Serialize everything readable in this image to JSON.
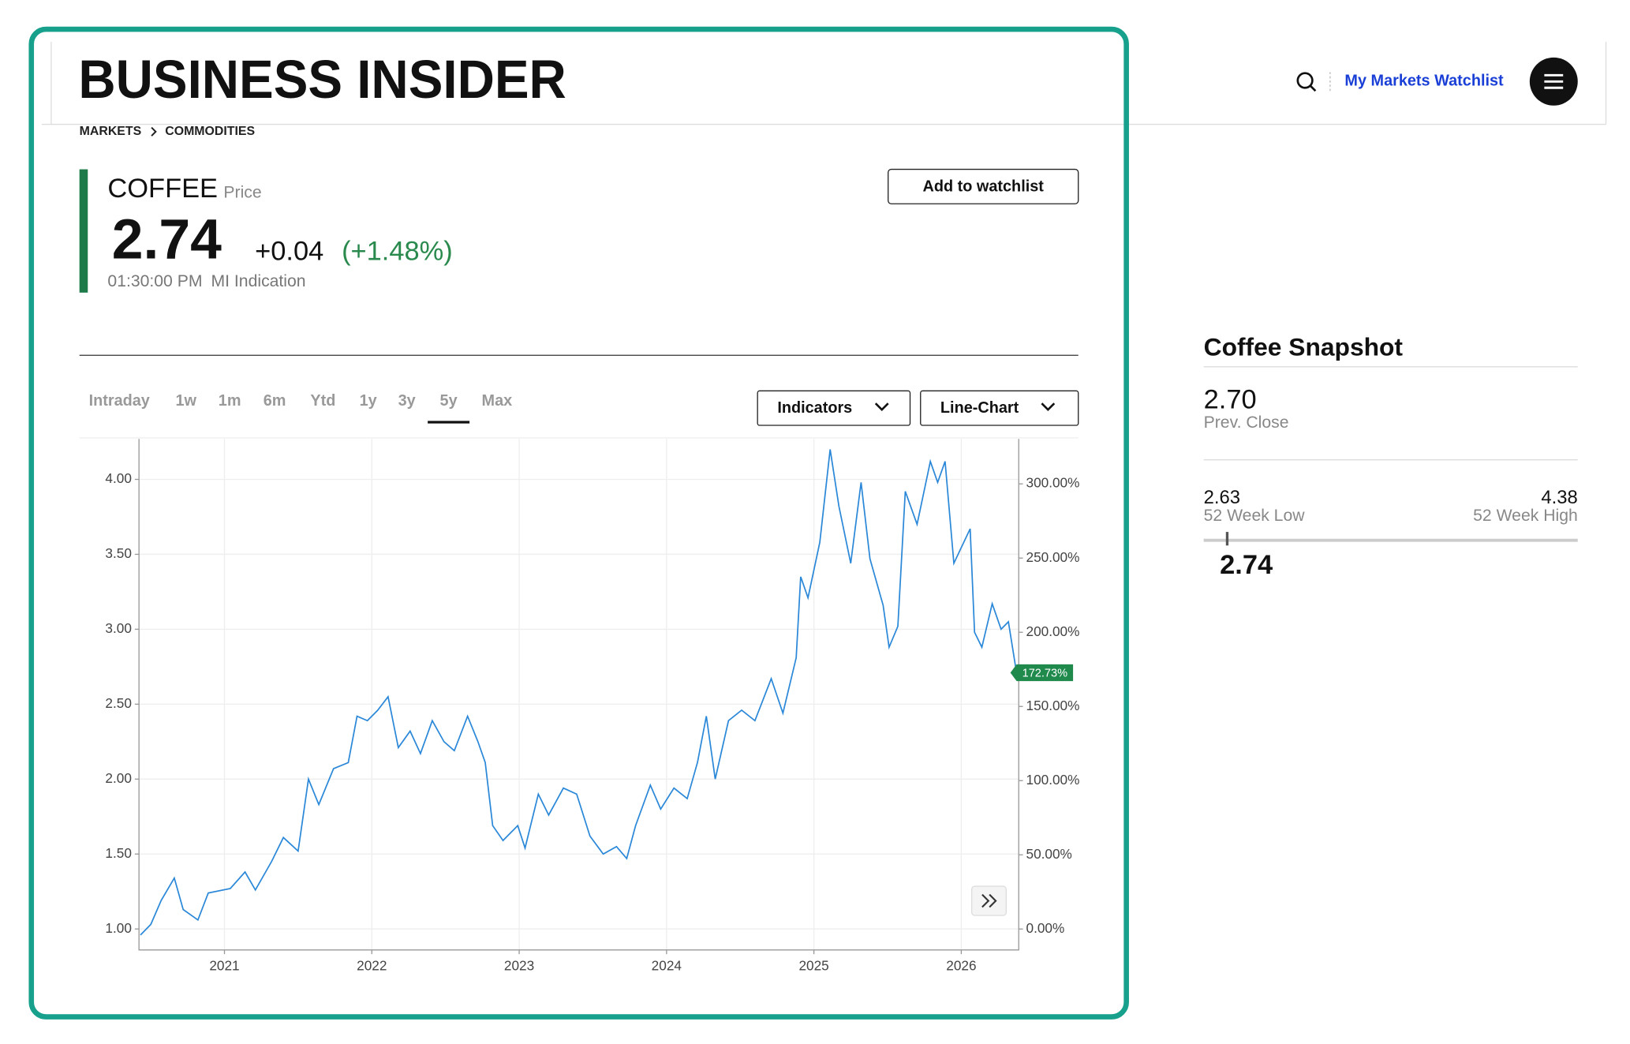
{
  "header": {
    "logo": "BUSINESS INSIDER",
    "watchlist_link": "My Markets Watchlist"
  },
  "breadcrumb": [
    "MARKETS",
    "COMMODITIES"
  ],
  "quote": {
    "name": "COFFEE",
    "name_suffix": "Price",
    "price": "2.74",
    "change": "+0.04",
    "change_percent": "(+1.48%)",
    "time": "01:30:00 PM",
    "source": "MI Indication",
    "watch_button": "Add to watchlist"
  },
  "tabs": [
    {
      "label": "Intraday"
    },
    {
      "label": "1w"
    },
    {
      "label": "1m"
    },
    {
      "label": "6m"
    },
    {
      "label": "Ytd"
    },
    {
      "label": "1y"
    },
    {
      "label": "3y"
    },
    {
      "label": "5y",
      "active": true
    },
    {
      "label": "Max"
    }
  ],
  "controls": {
    "indicators": "Indicators",
    "chart_type": "Line-Chart"
  },
  "snapshot": {
    "title": "Coffee Snapshot",
    "prev_close": "2.70",
    "prev_close_label": "Prev. Close",
    "low": "2.63",
    "low_label": "52 Week Low",
    "high": "4.38",
    "high_label": "52 Week High",
    "current": "2.74"
  },
  "chart_data": {
    "type": "line",
    "x": [
      2020.43,
      2020.5,
      2020.57,
      2020.66,
      2020.72,
      2020.82,
      2020.89,
      2021.04,
      2021.14,
      2021.21,
      2021.32,
      2021.4,
      2021.5,
      2021.57,
      2021.64,
      2021.74,
      2021.84,
      2021.9,
      2021.97,
      2022.04,
      2022.11,
      2022.18,
      2022.26,
      2022.33,
      2022.41,
      2022.49,
      2022.56,
      2022.65,
      2022.72,
      2022.77,
      2022.82,
      2022.89,
      2022.99,
      2023.04,
      2023.13,
      2023.2,
      2023.3,
      2023.39,
      2023.48,
      2023.57,
      2023.66,
      2023.73,
      2023.79,
      2023.89,
      2023.96,
      2024.05,
      2024.14,
      2024.21,
      2024.27,
      2024.33,
      2024.42,
      2024.51,
      2024.6,
      2024.71,
      2024.79,
      2024.88,
      2024.91,
      2024.96,
      2025.04,
      2025.11,
      2025.17,
      2025.25,
      2025.32,
      2025.38,
      2025.47,
      2025.51,
      2025.57,
      2025.62,
      2025.7,
      2025.79,
      2025.84,
      2025.89,
      2025.95,
      2026.06,
      2026.09,
      2026.14,
      2026.21,
      2026.27,
      2026.32,
      2026.37
    ],
    "series": [
      {
        "color": "#2b88d8",
        "values": [
          0.96,
          1.03,
          1.19,
          1.34,
          1.13,
          1.06,
          1.24,
          1.27,
          1.38,
          1.26,
          1.45,
          1.61,
          1.52,
          2.0,
          1.83,
          2.07,
          2.11,
          2.42,
          2.39,
          2.46,
          2.55,
          2.21,
          2.32,
          2.17,
          2.39,
          2.25,
          2.19,
          2.42,
          2.25,
          2.11,
          1.69,
          1.59,
          1.69,
          1.54,
          1.9,
          1.76,
          1.94,
          1.9,
          1.62,
          1.5,
          1.55,
          1.47,
          1.69,
          1.96,
          1.8,
          1.94,
          1.87,
          2.11,
          2.42,
          2.0,
          2.39,
          2.46,
          2.39,
          2.67,
          2.44,
          2.81,
          3.35,
          3.21,
          3.58,
          4.2,
          3.82,
          3.44,
          3.98,
          3.47,
          3.16,
          2.88,
          3.02,
          3.92,
          3.7,
          4.12,
          3.98,
          4.12,
          3.44,
          3.67,
          2.98,
          2.88,
          3.17,
          3.0,
          3.05,
          2.74
        ]
      }
    ],
    "xlim": [
      2020.42,
      2026.39
    ],
    "xticks": [
      2021,
      2022,
      2023,
      2024,
      2025,
      2026
    ],
    "ylim": [
      0.86,
      4.27
    ],
    "yticks": [
      {
        "value": 1,
        "label": "1.00"
      },
      {
        "value": 1.5,
        "label": "1.50"
      },
      {
        "value": 2,
        "label": "2.00"
      },
      {
        "value": 2.5,
        "label": "2.50"
      },
      {
        "value": 3,
        "label": "3.00"
      },
      {
        "value": 3.5,
        "label": "3.50"
      },
      {
        "value": 4,
        "label": "4.00"
      }
    ],
    "y2lim": [
      -14.1,
      330.3
    ],
    "y2ticks": [
      {
        "value": 0,
        "label": "0.00%"
      },
      {
        "value": 50,
        "label": "50.00%"
      },
      {
        "value": 100,
        "label": "100.00%"
      },
      {
        "value": 150,
        "label": "150.00%"
      },
      {
        "value": 200,
        "label": "200.00%"
      },
      {
        "value": 250,
        "label": "250.00%"
      },
      {
        "value": 300,
        "label": "300.00%"
      }
    ],
    "current_marker": {
      "value": 172.73,
      "label": "172.73%",
      "axis": "y2",
      "color": "#1f8a4c"
    },
    "grid": true
  }
}
